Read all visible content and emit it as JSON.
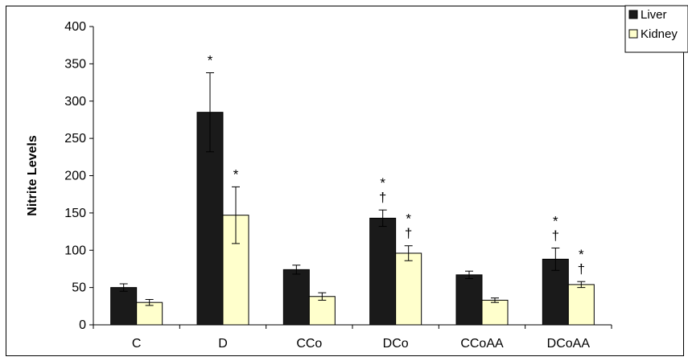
{
  "chart_data": {
    "type": "bar",
    "title": "",
    "xlabel": "",
    "ylabel": "Nitrite Levels",
    "ylim": [
      0,
      400
    ],
    "yticks": [
      0,
      50,
      100,
      150,
      200,
      250,
      300,
      350,
      400
    ],
    "categories": [
      "C",
      "D",
      "CCo",
      "DCo",
      "CCoAA",
      "DCoAA"
    ],
    "series": [
      {
        "name": "Liver",
        "color": "#1a1a1a",
        "values": [
          50,
          285,
          74,
          143,
          67,
          88
        ],
        "errors": [
          5,
          53,
          6,
          11,
          5,
          15
        ],
        "annotations": [
          [],
          [
            "*"
          ],
          [],
          [
            "*",
            "†"
          ],
          [],
          [
            "*",
            "†"
          ]
        ]
      },
      {
        "name": "Kidney",
        "color": "#ffffcc",
        "values": [
          30,
          147,
          38,
          96,
          33,
          54
        ],
        "errors": [
          4,
          38,
          5,
          10,
          3,
          4
        ],
        "annotations": [
          [],
          [
            "*"
          ],
          [],
          [
            "*",
            "†"
          ],
          [],
          [
            "*",
            "†"
          ]
        ]
      }
    ],
    "grid": false,
    "legend": "top-right"
  }
}
